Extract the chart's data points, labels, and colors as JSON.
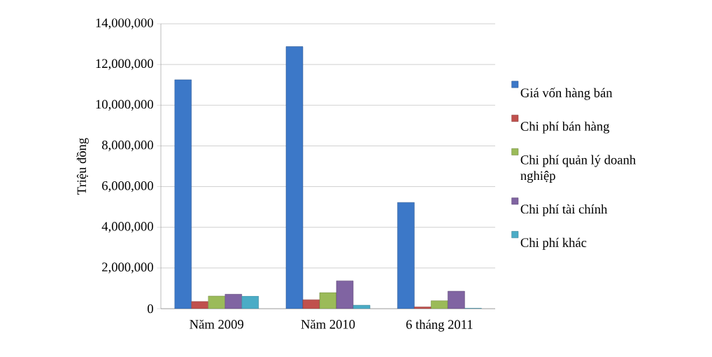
{
  "chart_data": {
    "type": "bar",
    "ylabel": "Triệu đồng",
    "categories": [
      "Năm 2009",
      "Năm 2010",
      "6 tháng 2011"
    ],
    "series": [
      {
        "name": "Giá vốn hàng bán",
        "color": "#3c78c8",
        "values": [
          11250000,
          12880000,
          5220000
        ]
      },
      {
        "name": "Chi phí bán hàng",
        "color": "#c0504d",
        "values": [
          350000,
          440000,
          90000
        ]
      },
      {
        "name": "Chi phí quản lý doanh nghiệp",
        "color": "#9bbb59",
        "values": [
          620000,
          790000,
          390000
        ]
      },
      {
        "name": "Chi phí tài chính",
        "color": "#8064a2",
        "values": [
          710000,
          1370000,
          860000
        ]
      },
      {
        "name": "Chi phí khác",
        "color": "#4bacc6",
        "values": [
          620000,
          170000,
          20000
        ]
      }
    ],
    "ylim": [
      0,
      14000000
    ],
    "yticks": [
      {
        "value": 0,
        "label": "0"
      },
      {
        "value": 2000000,
        "label": "2,000,000"
      },
      {
        "value": 4000000,
        "label": "4,000,000"
      },
      {
        "value": 6000000,
        "label": "6,000,000"
      },
      {
        "value": 8000000,
        "label": "8,000,000"
      },
      {
        "value": 10000000,
        "label": "10,000,000"
      },
      {
        "value": 12000000,
        "label": "12,000,000"
      },
      {
        "value": 14000000,
        "label": "14,000,000"
      }
    ],
    "grid": "y",
    "legend": "right"
  }
}
